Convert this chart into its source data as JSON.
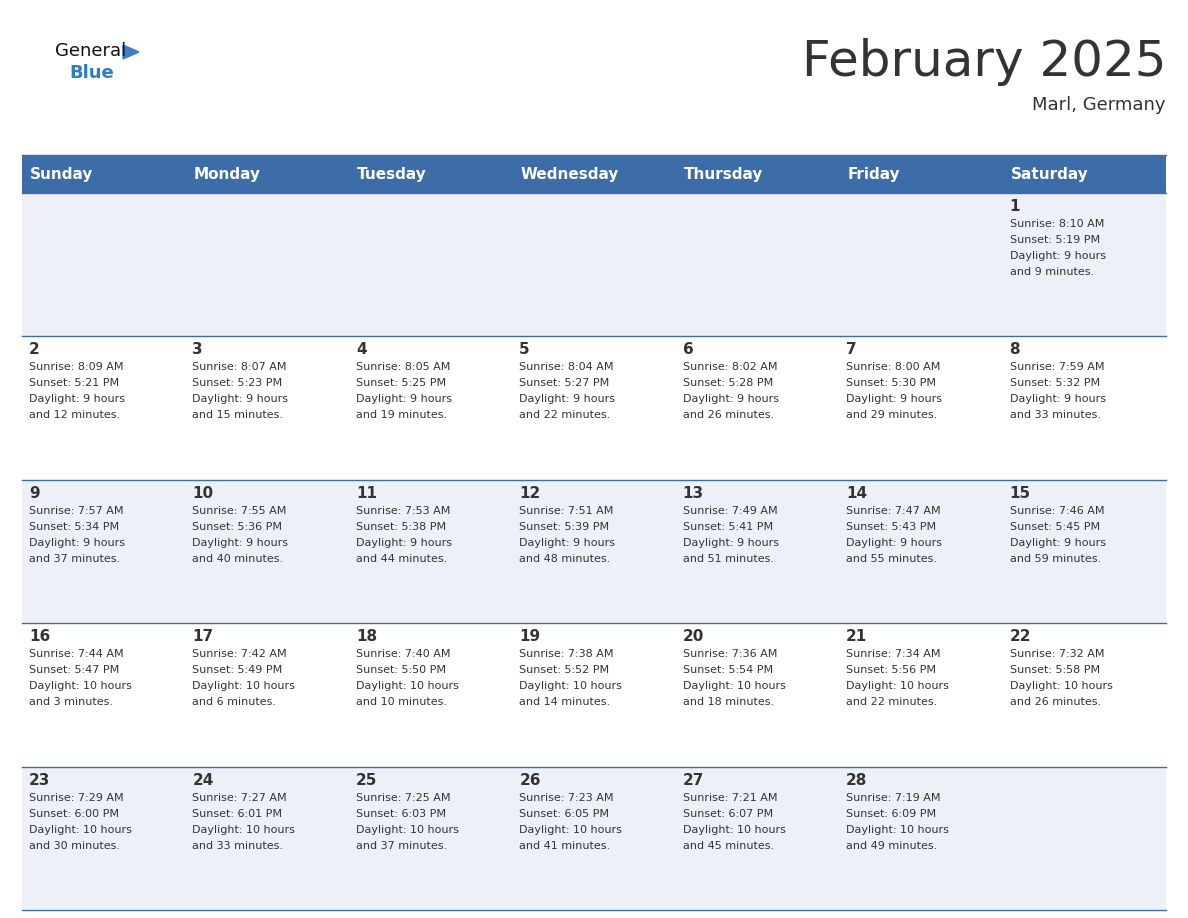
{
  "title": "February 2025",
  "subtitle": "Marl, Germany",
  "header_bg": "#3d6da8",
  "header_text_color": "#ffffff",
  "cell_bg_odd": "#edf1f7",
  "cell_bg_even": "#ffffff",
  "border_color": "#3d6da8",
  "day_headers": [
    "Sunday",
    "Monday",
    "Tuesday",
    "Wednesday",
    "Thursday",
    "Friday",
    "Saturday"
  ],
  "days": [
    {
      "day": 1,
      "col": 6,
      "row": 0,
      "sunrise": "8:10 AM",
      "sunset": "5:19 PM",
      "daylight_hours": 9,
      "daylight_minutes": 9
    },
    {
      "day": 2,
      "col": 0,
      "row": 1,
      "sunrise": "8:09 AM",
      "sunset": "5:21 PM",
      "daylight_hours": 9,
      "daylight_minutes": 12
    },
    {
      "day": 3,
      "col": 1,
      "row": 1,
      "sunrise": "8:07 AM",
      "sunset": "5:23 PM",
      "daylight_hours": 9,
      "daylight_minutes": 15
    },
    {
      "day": 4,
      "col": 2,
      "row": 1,
      "sunrise": "8:05 AM",
      "sunset": "5:25 PM",
      "daylight_hours": 9,
      "daylight_minutes": 19
    },
    {
      "day": 5,
      "col": 3,
      "row": 1,
      "sunrise": "8:04 AM",
      "sunset": "5:27 PM",
      "daylight_hours": 9,
      "daylight_minutes": 22
    },
    {
      "day": 6,
      "col": 4,
      "row": 1,
      "sunrise": "8:02 AM",
      "sunset": "5:28 PM",
      "daylight_hours": 9,
      "daylight_minutes": 26
    },
    {
      "day": 7,
      "col": 5,
      "row": 1,
      "sunrise": "8:00 AM",
      "sunset": "5:30 PM",
      "daylight_hours": 9,
      "daylight_minutes": 29
    },
    {
      "day": 8,
      "col": 6,
      "row": 1,
      "sunrise": "7:59 AM",
      "sunset": "5:32 PM",
      "daylight_hours": 9,
      "daylight_minutes": 33
    },
    {
      "day": 9,
      "col": 0,
      "row": 2,
      "sunrise": "7:57 AM",
      "sunset": "5:34 PM",
      "daylight_hours": 9,
      "daylight_minutes": 37
    },
    {
      "day": 10,
      "col": 1,
      "row": 2,
      "sunrise": "7:55 AM",
      "sunset": "5:36 PM",
      "daylight_hours": 9,
      "daylight_minutes": 40
    },
    {
      "day": 11,
      "col": 2,
      "row": 2,
      "sunrise": "7:53 AM",
      "sunset": "5:38 PM",
      "daylight_hours": 9,
      "daylight_minutes": 44
    },
    {
      "day": 12,
      "col": 3,
      "row": 2,
      "sunrise": "7:51 AM",
      "sunset": "5:39 PM",
      "daylight_hours": 9,
      "daylight_minutes": 48
    },
    {
      "day": 13,
      "col": 4,
      "row": 2,
      "sunrise": "7:49 AM",
      "sunset": "5:41 PM",
      "daylight_hours": 9,
      "daylight_minutes": 51
    },
    {
      "day": 14,
      "col": 5,
      "row": 2,
      "sunrise": "7:47 AM",
      "sunset": "5:43 PM",
      "daylight_hours": 9,
      "daylight_minutes": 55
    },
    {
      "day": 15,
      "col": 6,
      "row": 2,
      "sunrise": "7:46 AM",
      "sunset": "5:45 PM",
      "daylight_hours": 9,
      "daylight_minutes": 59
    },
    {
      "day": 16,
      "col": 0,
      "row": 3,
      "sunrise": "7:44 AM",
      "sunset": "5:47 PM",
      "daylight_hours": 10,
      "daylight_minutes": 3
    },
    {
      "day": 17,
      "col": 1,
      "row": 3,
      "sunrise": "7:42 AM",
      "sunset": "5:49 PM",
      "daylight_hours": 10,
      "daylight_minutes": 6
    },
    {
      "day": 18,
      "col": 2,
      "row": 3,
      "sunrise": "7:40 AM",
      "sunset": "5:50 PM",
      "daylight_hours": 10,
      "daylight_minutes": 10
    },
    {
      "day": 19,
      "col": 3,
      "row": 3,
      "sunrise": "7:38 AM",
      "sunset": "5:52 PM",
      "daylight_hours": 10,
      "daylight_minutes": 14
    },
    {
      "day": 20,
      "col": 4,
      "row": 3,
      "sunrise": "7:36 AM",
      "sunset": "5:54 PM",
      "daylight_hours": 10,
      "daylight_minutes": 18
    },
    {
      "day": 21,
      "col": 5,
      "row": 3,
      "sunrise": "7:34 AM",
      "sunset": "5:56 PM",
      "daylight_hours": 10,
      "daylight_minutes": 22
    },
    {
      "day": 22,
      "col": 6,
      "row": 3,
      "sunrise": "7:32 AM",
      "sunset": "5:58 PM",
      "daylight_hours": 10,
      "daylight_minutes": 26
    },
    {
      "day": 23,
      "col": 0,
      "row": 4,
      "sunrise": "7:29 AM",
      "sunset": "6:00 PM",
      "daylight_hours": 10,
      "daylight_minutes": 30
    },
    {
      "day": 24,
      "col": 1,
      "row": 4,
      "sunrise": "7:27 AM",
      "sunset": "6:01 PM",
      "daylight_hours": 10,
      "daylight_minutes": 33
    },
    {
      "day": 25,
      "col": 2,
      "row": 4,
      "sunrise": "7:25 AM",
      "sunset": "6:03 PM",
      "daylight_hours": 10,
      "daylight_minutes": 37
    },
    {
      "day": 26,
      "col": 3,
      "row": 4,
      "sunrise": "7:23 AM",
      "sunset": "6:05 PM",
      "daylight_hours": 10,
      "daylight_minutes": 41
    },
    {
      "day": 27,
      "col": 4,
      "row": 4,
      "sunrise": "7:21 AM",
      "sunset": "6:07 PM",
      "daylight_hours": 10,
      "daylight_minutes": 45
    },
    {
      "day": 28,
      "col": 5,
      "row": 4,
      "sunrise": "7:19 AM",
      "sunset": "6:09 PM",
      "daylight_hours": 10,
      "daylight_minutes": 49
    }
  ],
  "num_rows": 5,
  "num_cols": 7,
  "logo_triangle_color": "#3d7ec5",
  "text_color_dark": "#333333",
  "text_color_blue": "#2e7ec5",
  "title_fontsize": 36,
  "subtitle_fontsize": 13,
  "header_fontsize": 11,
  "day_num_fontsize": 11,
  "cell_text_fontsize": 8
}
